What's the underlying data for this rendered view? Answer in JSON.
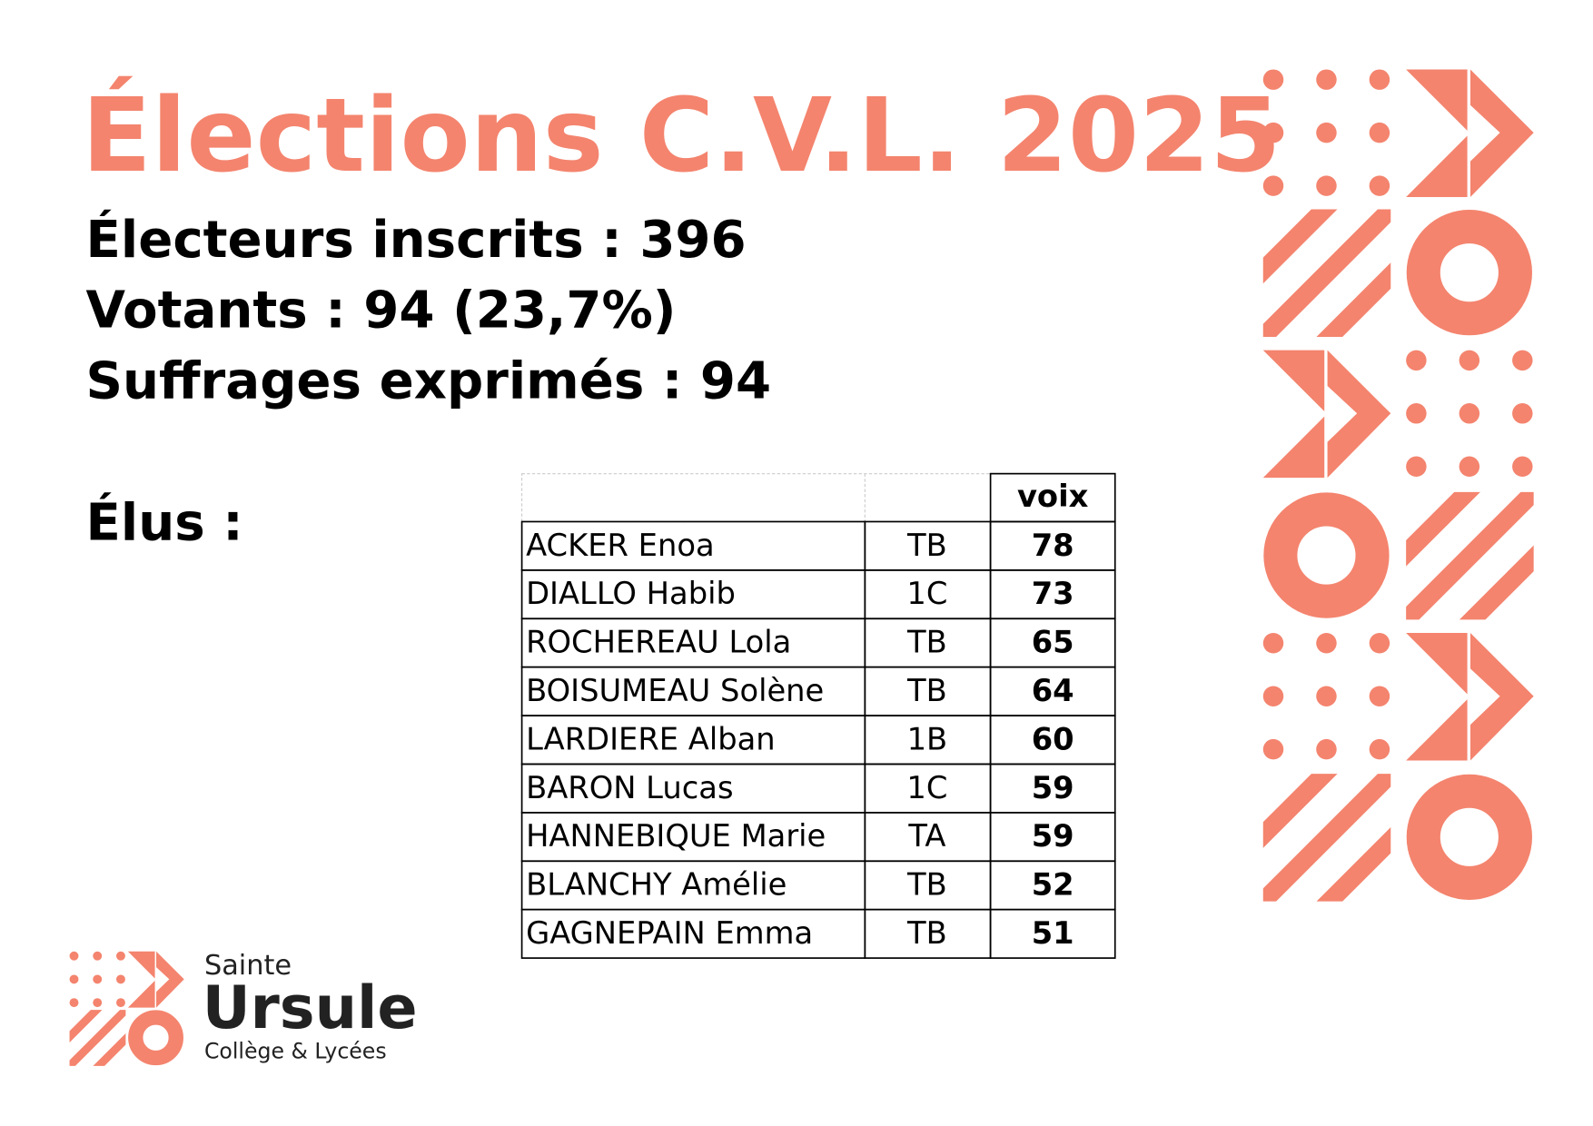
{
  "header": {
    "title": "Élections C.V.L. 2025"
  },
  "stats": [
    "Électeurs inscrits : 396",
    "Votants : 94 (23,7%)",
    "Suffrages exprimés : 94"
  ],
  "elus_label": "Élus :",
  "table": {
    "header": "voix",
    "rows": [
      [
        "ACKER Enoa",
        "TB",
        78
      ],
      [
        "DIALLO Habib",
        "1C",
        73
      ],
      [
        "ROCHEREAU Lola",
        "TB",
        65
      ],
      [
        "BOISUMEAU Solène",
        "TB",
        64
      ],
      [
        "LARDIERE Alban",
        "1B",
        60
      ],
      [
        "BARON Lucas",
        "1C",
        59
      ],
      [
        "HANNEBIQUE Marie",
        "TA",
        59
      ],
      [
        "BLANCHY Amélie",
        "TB",
        52
      ],
      [
        "GAGNEPAIN Emma",
        "TB",
        51
      ]
    ]
  },
  "logo": {
    "line1": "Sainte",
    "line2": "Ursule",
    "line3": "Collège & Lycées"
  }
}
